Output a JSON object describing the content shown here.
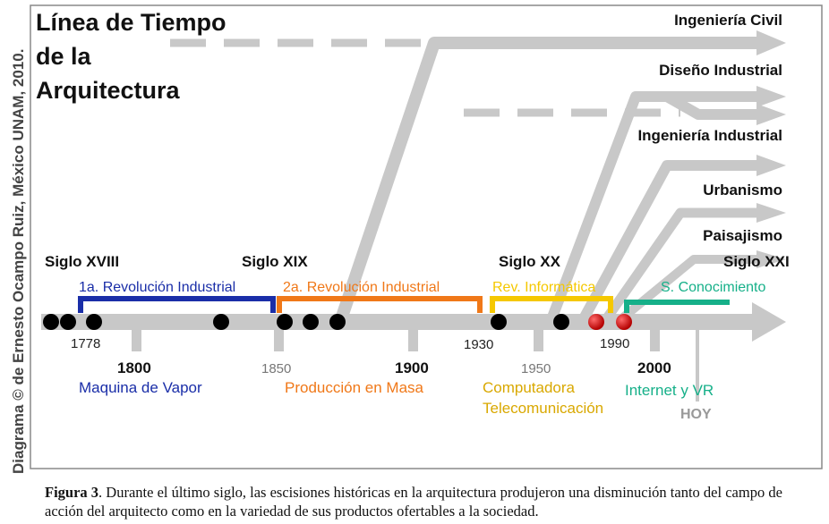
{
  "credit": "Diagrama © de Ernesto Ocampo Ruiz, México UNAM, 2010.",
  "title": [
    "Línea de Tiempo",
    "de la",
    "Arquitectura"
  ],
  "branches": [
    "Ingeniería Civil",
    "Diseño Industrial",
    "Ingeniería Industrial",
    "Urbanismo",
    "Paisajismo"
  ],
  "centuries": [
    "Siglo XVIII",
    "Siglo XIX",
    "Siglo XX",
    "Siglo XXI"
  ],
  "periods": [
    {
      "label": "1a. Revolución Industrial",
      "color": "#1a2ea8"
    },
    {
      "label": "2a. Revolución Industrial",
      "color": "#f07818"
    },
    {
      "label": "Rev. Informática",
      "color": "#f5c800"
    },
    {
      "label": "S. Conocimiento",
      "color": "#16b089"
    }
  ],
  "years_small": [
    "1778",
    "1850",
    "1930",
    "1950",
    "1990"
  ],
  "years_big": [
    "1800",
    "1900",
    "2000"
  ],
  "milestones": [
    {
      "label": "Maquina de Vapor",
      "color": "#1a2ea8"
    },
    {
      "label": "Producción en Masa",
      "color": "#f07818"
    },
    {
      "label": "Computadora",
      "color": "#d9a800"
    },
    {
      "label": "Telecomunicación",
      "color": "#d9a800"
    },
    {
      "label": "Internet y VR",
      "color": "#16b089"
    }
  ],
  "today_label": "HOY",
  "caption": {
    "label": "Figura 3",
    "text": ". Durante el último siglo, las escisiones históricas en la arquitectura produjeron una disminución tanto del campo de acción del arquitecto como en la variedad de sus productos ofertables a la sociedad."
  },
  "colors": {
    "timeline": "#c8c8c8",
    "event_dot": "#000000",
    "recent_dot": "#cc0000",
    "frame": "#888888"
  }
}
